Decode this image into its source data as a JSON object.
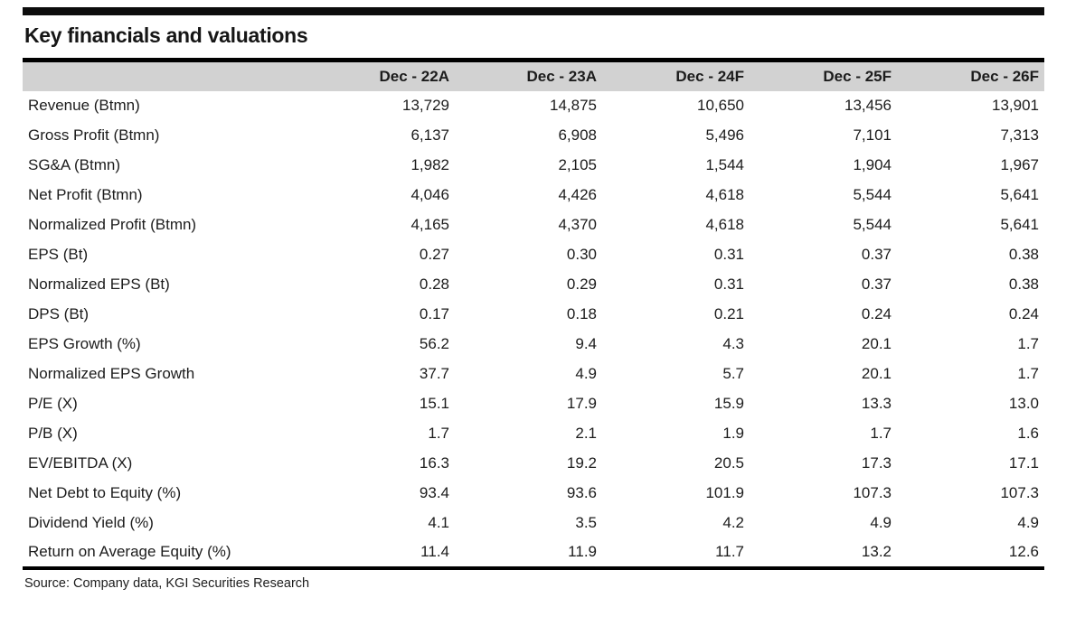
{
  "title": "Key financials and valuations",
  "source": "Source: Company data, KGI Securities Research",
  "colors": {
    "header_bg": "#d2d2d2",
    "rule": "#000000",
    "text": "#1c1c1c",
    "top_bar": "#0d0d0d"
  },
  "table": {
    "columns": [
      "Dec - 22A",
      "Dec - 23A",
      "Dec - 24F",
      "Dec - 25F",
      "Dec - 26F"
    ],
    "rows": [
      {
        "label": "Revenue (Btmn)",
        "values": [
          "13,729",
          "14,875",
          "10,650",
          "13,456",
          "13,901"
        ]
      },
      {
        "label": "Gross Profit (Btmn)",
        "values": [
          "6,137",
          "6,908",
          "5,496",
          "7,101",
          "7,313"
        ]
      },
      {
        "label": "SG&A (Btmn)",
        "values": [
          "1,982",
          "2,105",
          "1,544",
          "1,904",
          "1,967"
        ]
      },
      {
        "label": "Net Profit (Btmn)",
        "values": [
          "4,046",
          "4,426",
          "4,618",
          "5,544",
          "5,641"
        ]
      },
      {
        "label": "Normalized Profit (Btmn)",
        "values": [
          "4,165",
          "4,370",
          "4,618",
          "5,544",
          "5,641"
        ]
      },
      {
        "label": "EPS (Bt)",
        "values": [
          "0.27",
          "0.30",
          "0.31",
          "0.37",
          "0.38"
        ]
      },
      {
        "label": "Normalized EPS (Bt)",
        "values": [
          "0.28",
          "0.29",
          "0.31",
          "0.37",
          "0.38"
        ]
      },
      {
        "label": "DPS (Bt)",
        "values": [
          "0.17",
          "0.18",
          "0.21",
          "0.24",
          "0.24"
        ]
      },
      {
        "label": "EPS Growth (%)",
        "values": [
          "56.2",
          "9.4",
          "4.3",
          "20.1",
          "1.7"
        ]
      },
      {
        "label": "Normalized EPS Growth",
        "values": [
          "37.7",
          "4.9",
          "5.7",
          "20.1",
          "1.7"
        ]
      },
      {
        "label": "P/E (X)",
        "values": [
          "15.1",
          "17.9",
          "15.9",
          "13.3",
          "13.0"
        ]
      },
      {
        "label": "P/B (X)",
        "values": [
          "1.7",
          "2.1",
          "1.9",
          "1.7",
          "1.6"
        ]
      },
      {
        "label": "EV/EBITDA (X)",
        "values": [
          "16.3",
          "19.2",
          "20.5",
          "17.3",
          "17.1"
        ]
      },
      {
        "label": "Net Debt to Equity (%)",
        "values": [
          "93.4",
          "93.6",
          "101.9",
          "107.3",
          "107.3"
        ]
      },
      {
        "label": "Dividend Yield (%)",
        "values": [
          "4.1",
          "3.5",
          "4.2",
          "4.9",
          "4.9"
        ]
      },
      {
        "label": "Return on Average Equity (%)",
        "values": [
          "11.4",
          "11.9",
          "11.7",
          "13.2",
          "12.6"
        ]
      }
    ]
  }
}
